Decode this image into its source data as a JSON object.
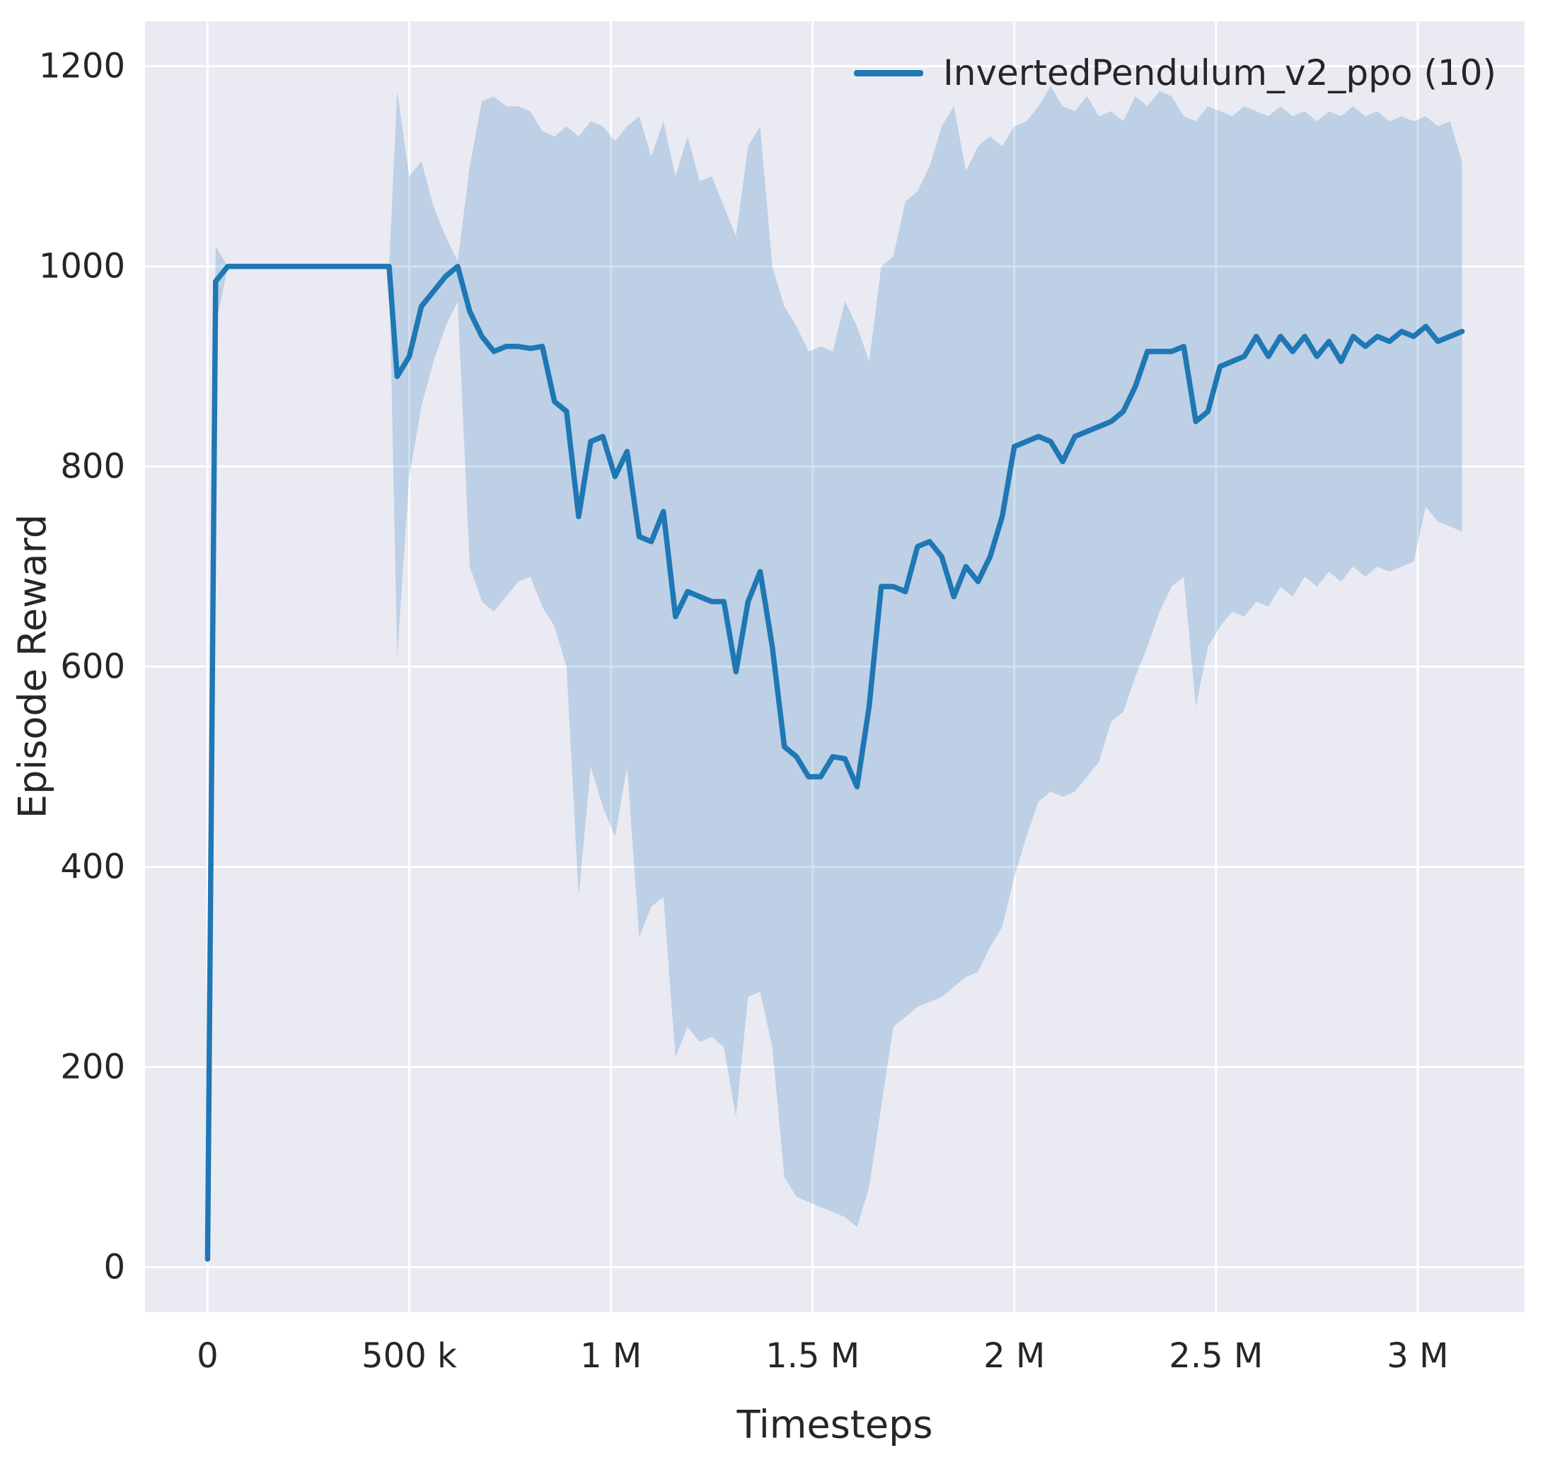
{
  "figure": {
    "background": "#ffffff",
    "axes_background": "#eaeaf2",
    "grid_color": "#ffffff",
    "text_color": "#262626"
  },
  "chart_data": {
    "type": "line",
    "title": "",
    "xlabel": "Timesteps",
    "ylabel": "Episode Reward",
    "grid": true,
    "legend": {
      "position": "upper right",
      "entries": [
        {
          "label": "InvertedPendulum_v2_ppo (10)",
          "color": "#1f77b4"
        }
      ]
    },
    "xlim": [
      -155000,
      3265000
    ],
    "ylim": [
      -45,
      1245
    ],
    "x_ticks": [
      {
        "value": 0,
        "label": "0"
      },
      {
        "value": 500000,
        "label": "500 k"
      },
      {
        "value": 1000000,
        "label": "1 M"
      },
      {
        "value": 1500000,
        "label": "1.5 M"
      },
      {
        "value": 2000000,
        "label": "2 M"
      },
      {
        "value": 2500000,
        "label": "2.5 M"
      },
      {
        "value": 3000000,
        "label": "3 M"
      }
    ],
    "y_ticks": [
      {
        "value": 0,
        "label": "0"
      },
      {
        "value": 200,
        "label": "200"
      },
      {
        "value": 400,
        "label": "400"
      },
      {
        "value": 600,
        "label": "600"
      },
      {
        "value": 800,
        "label": "800"
      },
      {
        "value": 1000,
        "label": "1000"
      },
      {
        "value": 1200,
        "label": "1200"
      }
    ],
    "series": [
      {
        "name": "InvertedPendulum_v2_ppo (10)",
        "color": "#1f77b4",
        "band_color": "#1f77b4",
        "band_opacity": 0.22,
        "x": [
          0,
          20000,
          50000,
          100000,
          150000,
          200000,
          250000,
          300000,
          350000,
          400000,
          450000,
          470000,
          500000,
          530000,
          560000,
          590000,
          620000,
          650000,
          680000,
          710000,
          740000,
          770000,
          800000,
          830000,
          860000,
          890000,
          920000,
          950000,
          980000,
          1010000,
          1040000,
          1070000,
          1100000,
          1130000,
          1160000,
          1190000,
          1220000,
          1250000,
          1280000,
          1310000,
          1340000,
          1370000,
          1400000,
          1430000,
          1460000,
          1490000,
          1520000,
          1550000,
          1580000,
          1610000,
          1640000,
          1670000,
          1700000,
          1730000,
          1760000,
          1790000,
          1820000,
          1850000,
          1880000,
          1910000,
          1940000,
          1970000,
          2000000,
          2030000,
          2060000,
          2090000,
          2120000,
          2150000,
          2180000,
          2210000,
          2240000,
          2270000,
          2300000,
          2330000,
          2360000,
          2390000,
          2420000,
          2450000,
          2480000,
          2510000,
          2540000,
          2570000,
          2600000,
          2630000,
          2660000,
          2690000,
          2720000,
          2750000,
          2780000,
          2810000,
          2840000,
          2870000,
          2900000,
          2930000,
          2960000,
          2990000,
          3020000,
          3050000,
          3080000,
          3110000
        ],
        "mean": [
          8,
          985,
          1000,
          1000,
          1000,
          1000,
          1000,
          1000,
          1000,
          1000,
          1000,
          890,
          910,
          960,
          975,
          990,
          1000,
          955,
          930,
          915,
          920,
          920,
          918,
          920,
          865,
          855,
          750,
          825,
          830,
          790,
          815,
          730,
          725,
          755,
          650,
          675,
          670,
          665,
          665,
          595,
          665,
          695,
          620,
          520,
          510,
          490,
          490,
          510,
          508,
          480,
          560,
          680,
          680,
          675,
          720,
          725,
          710,
          670,
          700,
          685,
          710,
          750,
          820,
          825,
          830,
          825,
          805,
          830,
          835,
          840,
          845,
          855,
          880,
          915,
          915,
          915,
          920,
          845,
          855,
          900,
          905,
          910,
          930,
          910,
          930,
          915,
          930,
          910,
          925,
          905,
          930,
          920,
          930,
          925,
          935,
          930,
          940,
          925,
          930,
          935
        ],
        "lower": [
          8,
          940,
          1000,
          1000,
          1000,
          1000,
          1000,
          1000,
          1000,
          1000,
          1000,
          610,
          790,
          860,
          905,
          940,
          965,
          700,
          665,
          655,
          670,
          685,
          690,
          660,
          640,
          600,
          370,
          500,
          460,
          430,
          500,
          330,
          360,
          370,
          210,
          240,
          225,
          230,
          220,
          150,
          270,
          275,
          220,
          90,
          70,
          65,
          60,
          55,
          50,
          40,
          80,
          160,
          240,
          250,
          260,
          265,
          270,
          280,
          290,
          295,
          320,
          340,
          390,
          430,
          465,
          475,
          470,
          475,
          490,
          505,
          545,
          555,
          590,
          620,
          655,
          680,
          690,
          560,
          620,
          640,
          655,
          650,
          665,
          660,
          680,
          670,
          690,
          680,
          695,
          685,
          700,
          690,
          700,
          695,
          700,
          705,
          760,
          745,
          740,
          735
        ],
        "upper": [
          8,
          1020,
          1000,
          1000,
          1000,
          1000,
          1000,
          1000,
          1000,
          1000,
          1000,
          1175,
          1090,
          1105,
          1060,
          1030,
          1005,
          1100,
          1165,
          1170,
          1160,
          1160,
          1155,
          1135,
          1130,
          1140,
          1130,
          1145,
          1140,
          1125,
          1140,
          1150,
          1110,
          1145,
          1090,
          1130,
          1085,
          1090,
          1060,
          1030,
          1120,
          1140,
          1000,
          960,
          940,
          915,
          920,
          915,
          965,
          940,
          905,
          1000,
          1010,
          1065,
          1075,
          1100,
          1140,
          1160,
          1095,
          1120,
          1130,
          1120,
          1140,
          1145,
          1160,
          1180,
          1160,
          1155,
          1170,
          1150,
          1155,
          1145,
          1170,
          1160,
          1175,
          1170,
          1150,
          1145,
          1160,
          1155,
          1150,
          1160,
          1155,
          1150,
          1160,
          1150,
          1155,
          1145,
          1155,
          1150,
          1160,
          1150,
          1155,
          1145,
          1150,
          1145,
          1150,
          1140,
          1145,
          1105
        ]
      }
    ]
  }
}
